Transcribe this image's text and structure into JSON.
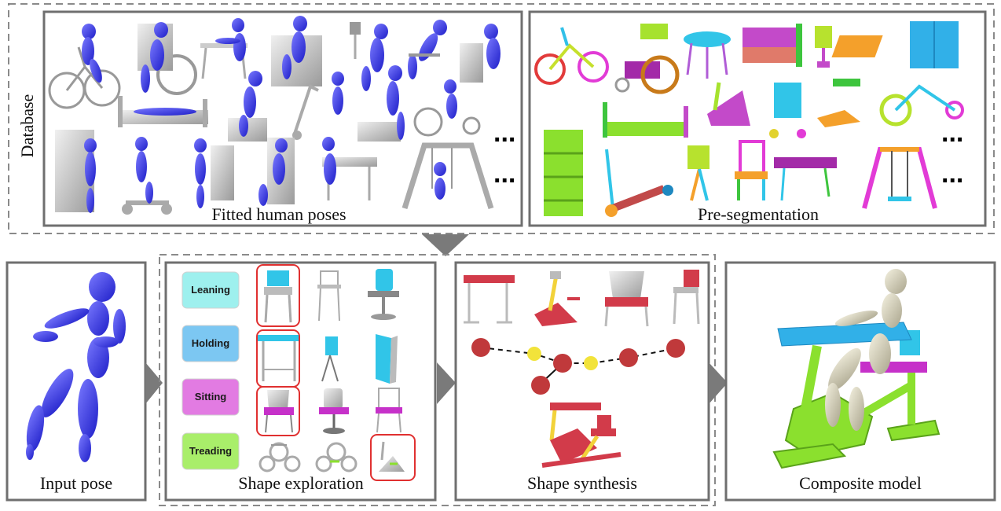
{
  "database": {
    "label": "Database",
    "left_panel_caption": "Fitted human poses",
    "right_panel_caption": "Pre-segmentation",
    "ellipsis": "..."
  },
  "stages": {
    "input": "Input pose",
    "exploration": "Shape exploration",
    "synthesis": "Shape synthesis",
    "composite": "Composite model"
  },
  "exploration_buttons": [
    {
      "label": "Leaning",
      "color": "#9ef0ee"
    },
    {
      "label": "Holding",
      "color": "#7cc7f2"
    },
    {
      "label": "Sitting",
      "color": "#e27be2"
    },
    {
      "label": "Treading",
      "color": "#a9ee6a"
    }
  ],
  "colors": {
    "pose_blue": "#3535e6",
    "highlight_red": "#e03030",
    "node_red": "#c0393b",
    "node_yellow": "#f2e33a",
    "frame_gray": "#6f6f6f",
    "dashed_gray": "#8a8a8a",
    "arrow_gray": "#7a7a7a"
  }
}
